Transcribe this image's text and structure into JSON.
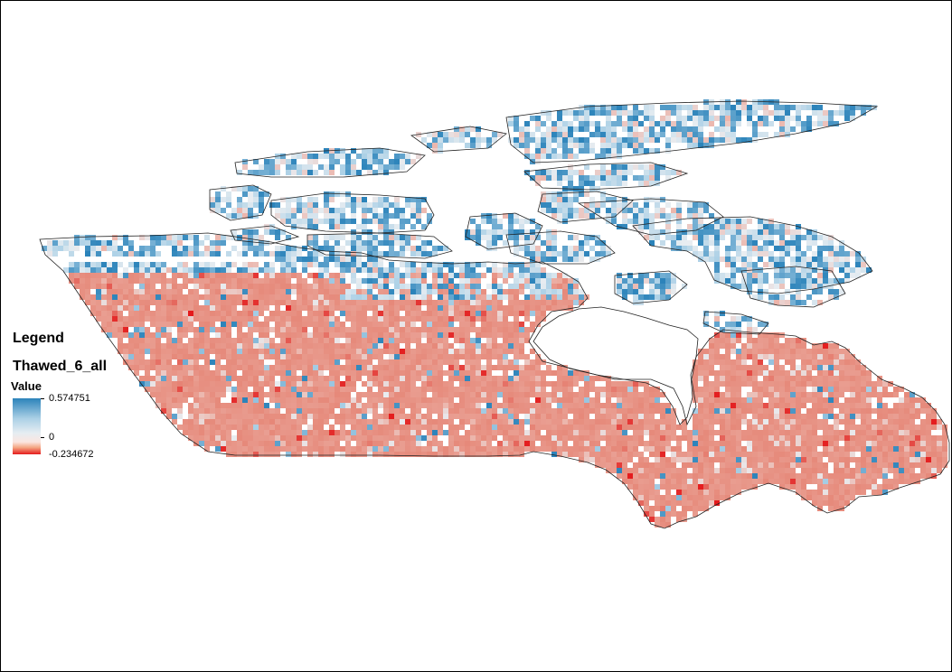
{
  "legend": {
    "title": "Legend",
    "layer_name": "Thawed_6_all",
    "value_heading": "Value",
    "max_label": "0.574751",
    "zero_label": "0",
    "min_label": "-0.234672"
  },
  "colors": {
    "high": "#2b83ba",
    "mid_high": "#abd0e6",
    "neutral": "#e8edf1",
    "low": "#e6897a",
    "min": "#e41a1c",
    "boundary": "#222222"
  },
  "value_range": [
    -0.234672,
    0.574751
  ]
}
